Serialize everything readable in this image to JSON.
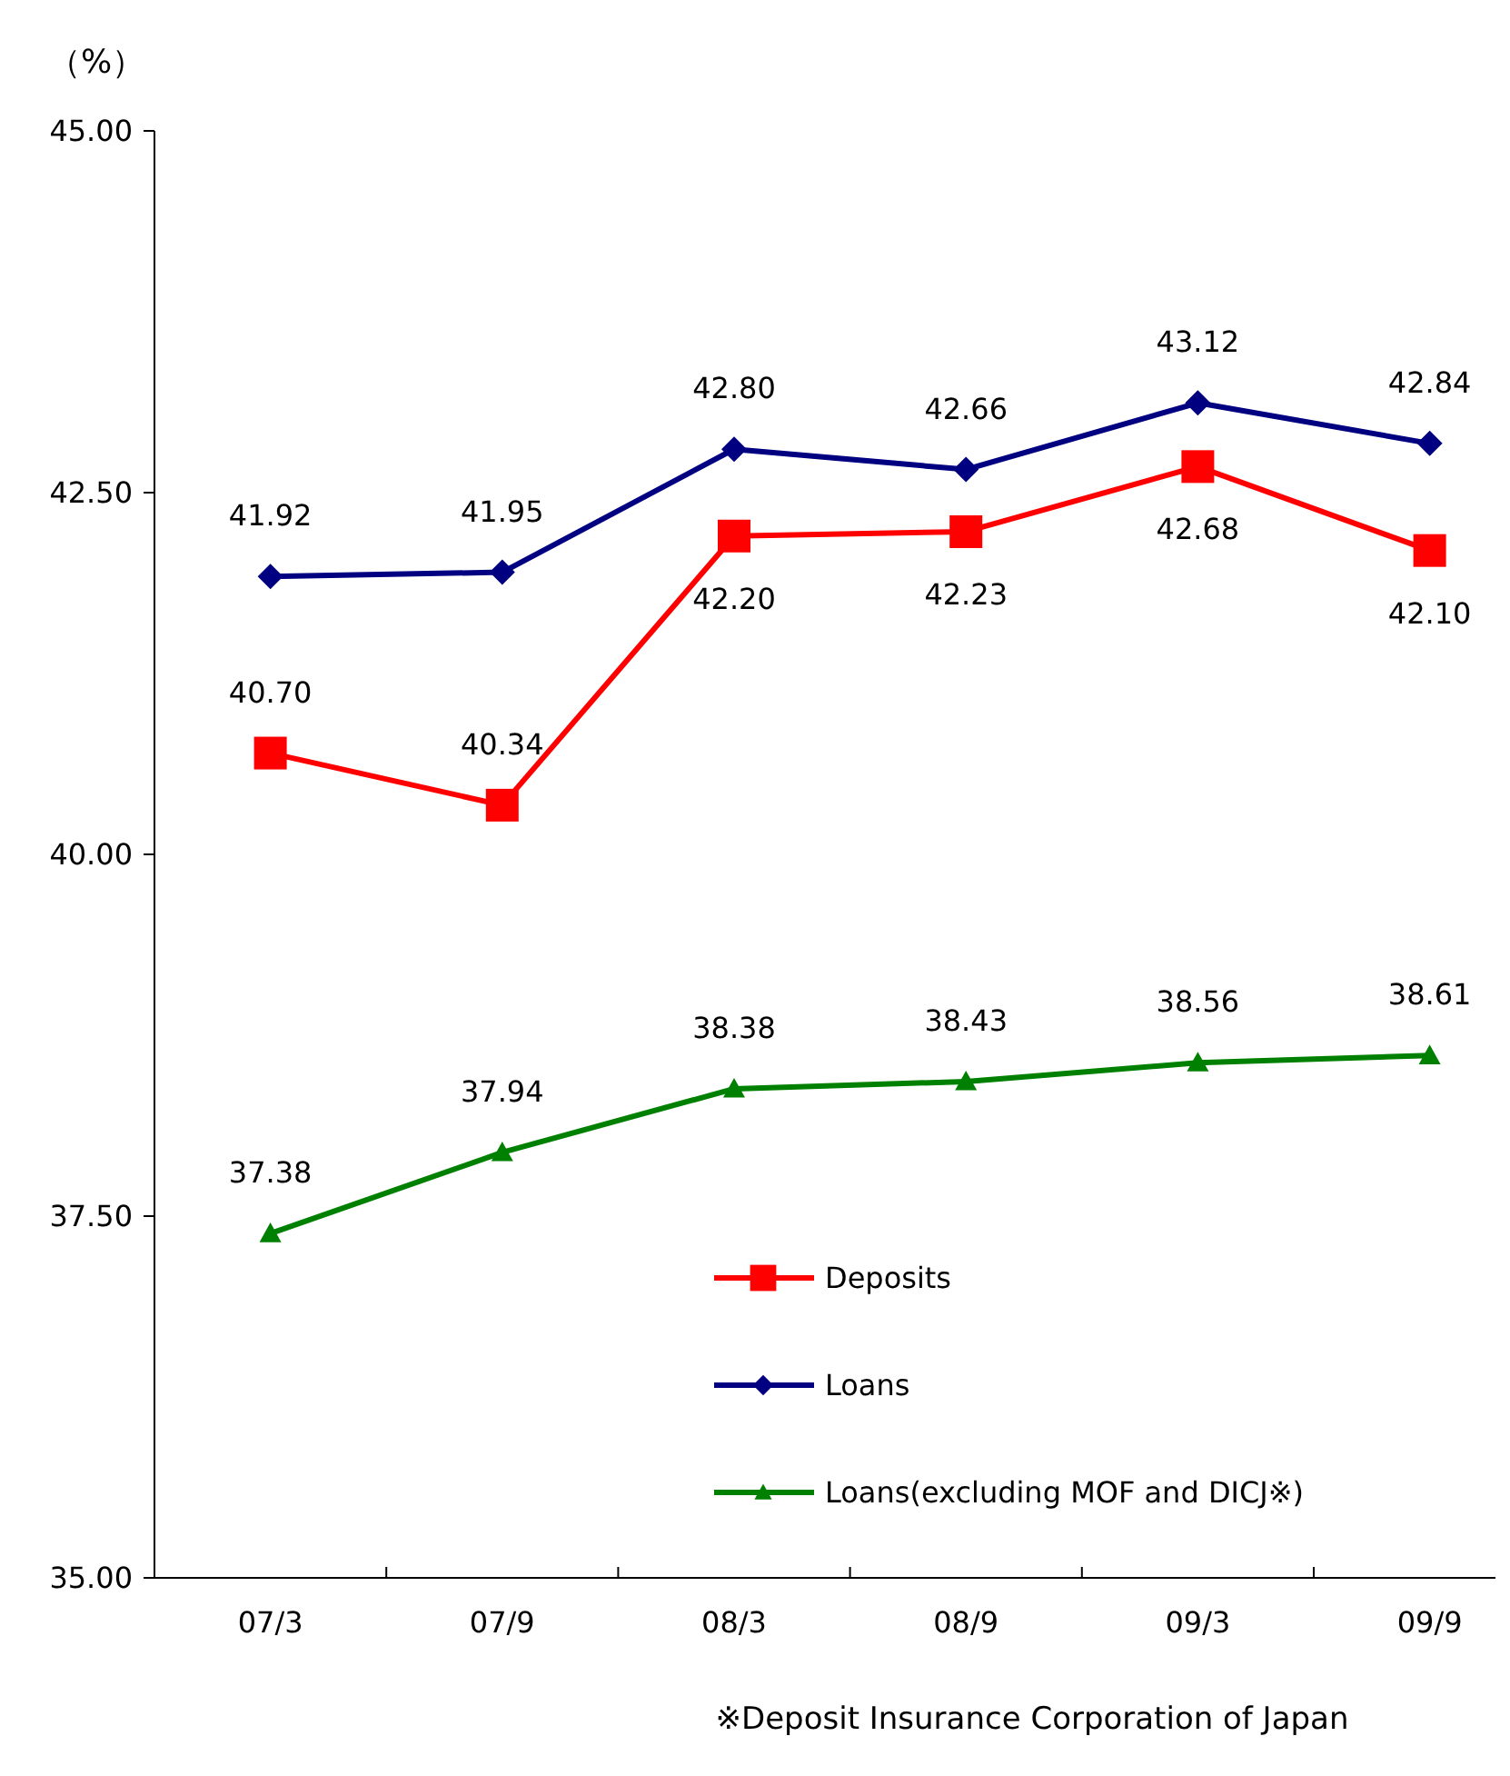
{
  "chart_data": {
    "type": "line",
    "ylabel": "（%）",
    "categories": [
      "07/3",
      "07/9",
      "08/3",
      "08/9",
      "09/3",
      "09/9"
    ],
    "series": [
      {
        "name": "Deposits",
        "color": "#ff0000",
        "marker": "square",
        "values": [
          40.7,
          40.34,
          42.2,
          42.23,
          42.68,
          42.1
        ],
        "value_labels": [
          "40.70",
          "40.34",
          "42.20",
          "42.23",
          "42.68",
          "42.10"
        ]
      },
      {
        "name": "Loans",
        "color": "#000080",
        "marker": "diamond",
        "values": [
          41.92,
          41.95,
          42.8,
          42.66,
          43.12,
          42.84
        ],
        "value_labels": [
          "41.92",
          "41.95",
          "42.80",
          "42.66",
          "43.12",
          "42.84"
        ]
      },
      {
        "name": "Loans(excluding MOF and DICJ※)",
        "color": "#008000",
        "marker": "triangle",
        "values": [
          37.38,
          37.94,
          38.38,
          38.43,
          38.56,
          38.61
        ],
        "value_labels": [
          "37.38",
          "37.94",
          "38.38",
          "38.43",
          "38.56",
          "38.61"
        ]
      }
    ],
    "ylim": [
      35,
      45
    ],
    "yticks": [
      {
        "value": 35,
        "label": "35.00"
      },
      {
        "value": 37.5,
        "label": "37.50"
      },
      {
        "value": 40,
        "label": "40.00"
      },
      {
        "value": 42.5,
        "label": "42.50"
      },
      {
        "value": 45,
        "label": "45.00"
      }
    ],
    "grid": false,
    "legend": "bottom",
    "line_style": "solid",
    "annotations": [
      "※Deposit Insurance Corporation of Japan"
    ]
  }
}
